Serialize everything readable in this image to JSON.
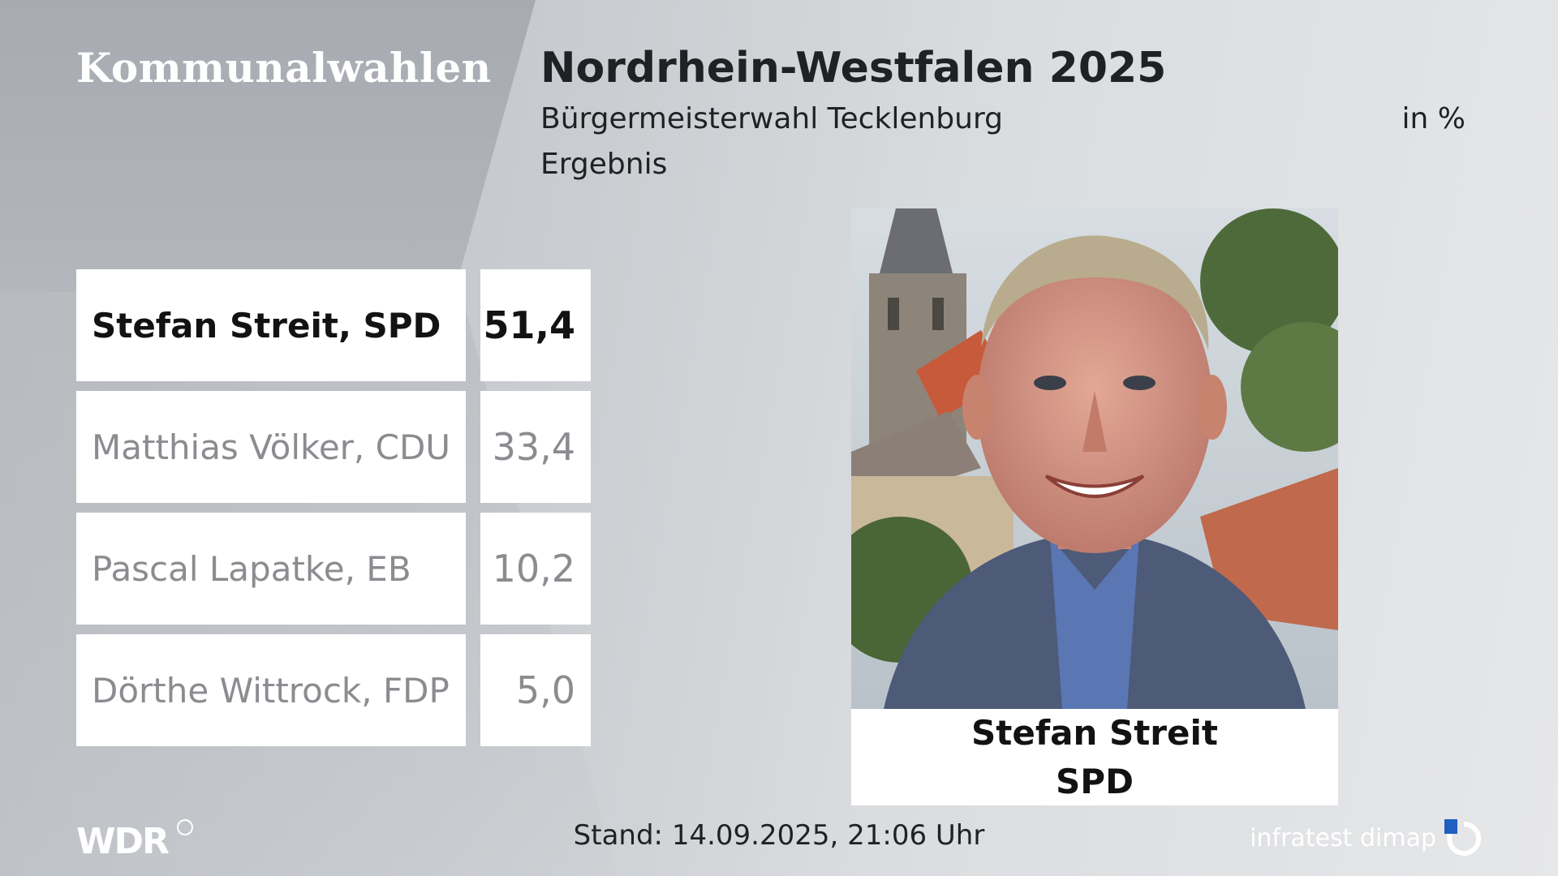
{
  "brand": {
    "title": "Kommunalwahlen"
  },
  "header": {
    "headline": "Nordrhein-Westfalen 2025",
    "subline": "Bürgermeisterwahl Tecklenburg",
    "unit": "in %",
    "result_label": "Ergebnis"
  },
  "results": [
    {
      "name": "Stefan Streit, SPD",
      "value": "51,4"
    },
    {
      "name": "Matthias Völker, CDU",
      "value": "33,4"
    },
    {
      "name": "Pascal Lapatke, EB",
      "value": "10,2"
    },
    {
      "name": "Dörthe Wittrock, FDP",
      "value": "5,0"
    }
  ],
  "winner": {
    "name": "Stefan Streit",
    "party": "SPD"
  },
  "footer": {
    "logo": "WDR",
    "stand": "Stand: 14.09.2025, 21:06 Uhr",
    "source": "infratest dimap"
  },
  "colors": {
    "winner_text": "#111214",
    "other_text": "#8a8c90",
    "cell_bg": "#ffffff"
  }
}
